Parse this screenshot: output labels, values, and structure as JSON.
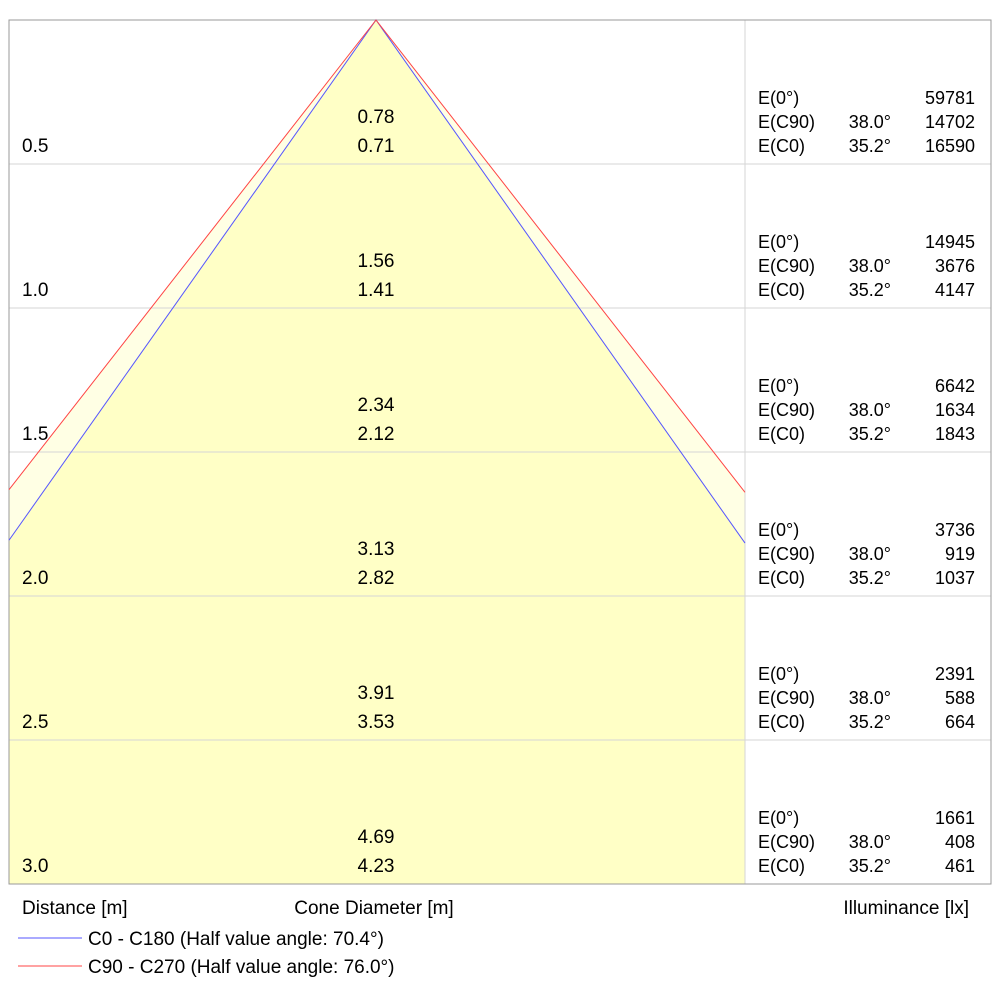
{
  "chart_data": {
    "type": "cone_diagram",
    "rows": [
      {
        "distance": "0.5",
        "diameter_c90": "0.78",
        "diameter_c0": "0.71",
        "illuminance": [
          {
            "label": "E(0°)",
            "angle": "",
            "value": "59781"
          },
          {
            "label": "E(C90)",
            "angle": "38.0°",
            "value": "14702"
          },
          {
            "label": "E(C0)",
            "angle": "35.2°",
            "value": "16590"
          }
        ]
      },
      {
        "distance": "1.0",
        "diameter_c90": "1.56",
        "diameter_c0": "1.41",
        "illuminance": [
          {
            "label": "E(0°)",
            "angle": "",
            "value": "14945"
          },
          {
            "label": "E(C90)",
            "angle": "38.0°",
            "value": "3676"
          },
          {
            "label": "E(C0)",
            "angle": "35.2°",
            "value": "4147"
          }
        ]
      },
      {
        "distance": "1.5",
        "diameter_c90": "2.34",
        "diameter_c0": "2.12",
        "illuminance": [
          {
            "label": "E(0°)",
            "angle": "",
            "value": "6642"
          },
          {
            "label": "E(C90)",
            "angle": "38.0°",
            "value": "1634"
          },
          {
            "label": "E(C0)",
            "angle": "35.2°",
            "value": "1843"
          }
        ]
      },
      {
        "distance": "2.0",
        "diameter_c90": "3.13",
        "diameter_c0": "2.82",
        "illuminance": [
          {
            "label": "E(0°)",
            "angle": "",
            "value": "3736"
          },
          {
            "label": "E(C90)",
            "angle": "38.0°",
            "value": "919"
          },
          {
            "label": "E(C0)",
            "angle": "35.2°",
            "value": "1037"
          }
        ]
      },
      {
        "distance": "2.5",
        "diameter_c90": "3.91",
        "diameter_c0": "3.53",
        "illuminance": [
          {
            "label": "E(0°)",
            "angle": "",
            "value": "2391"
          },
          {
            "label": "E(C90)",
            "angle": "38.0°",
            "value": "588"
          },
          {
            "label": "E(C0)",
            "angle": "35.2°",
            "value": "664"
          }
        ]
      },
      {
        "distance": "3.0",
        "diameter_c90": "4.69",
        "diameter_c0": "4.23",
        "illuminance": [
          {
            "label": "E(0°)",
            "angle": "",
            "value": "1661"
          },
          {
            "label": "E(C90)",
            "angle": "38.0°",
            "value": "408"
          },
          {
            "label": "E(C0)",
            "angle": "35.2°",
            "value": "461"
          }
        ]
      }
    ],
    "xlabel_distance": "Distance [m]",
    "xlabel_diameter": "Cone Diameter [m]",
    "xlabel_illuminance": "Illuminance [lx]",
    "series": [
      {
        "name": "C0 - C180 (Half value angle: 70.4°)",
        "half_angle_deg": 70.4,
        "color": "#5555ff"
      },
      {
        "name": "C90 - C270 (Half value angle: 76.0°)",
        "half_angle_deg": 76.0,
        "color": "#ff4444"
      }
    ],
    "colors": {
      "cone_fill": "#ffffc6",
      "cone_fill_outer": "#ffffe4",
      "grid": "#d6d6d6",
      "border": "#999999"
    }
  }
}
